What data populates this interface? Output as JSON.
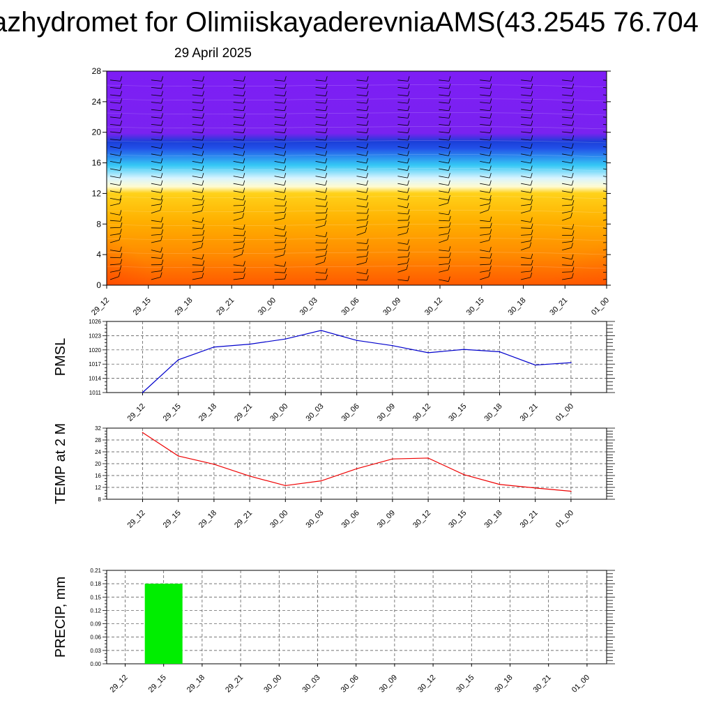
{
  "title": "azhydromet for OlimiiskayaderevniaAMS(43.2545 76.704",
  "date": "29 April 2025",
  "chart_data": [
    {
      "type": "heatmap",
      "name": "vertical-cross-section",
      "x_labels": [
        "29_12",
        "29_15",
        "29_18",
        "29_21",
        "30_00",
        "30_03",
        "30_06",
        "30_09",
        "30_12",
        "30_15",
        "30_18",
        "30_21",
        "01_00"
      ],
      "y_ticks": [
        0,
        4,
        8,
        12,
        16,
        20,
        24,
        28
      ],
      "ylim": [
        0,
        28
      ],
      "colors": {
        "top": "#7d1ef5",
        "deep_blue": "#1a3fd8",
        "cyan": "#35c8f5",
        "light": "#fff8c8",
        "yellow": "#ffd21a",
        "orange": "#ff8a00",
        "red": "#ff2200",
        "dark_red": "#b01010"
      }
    },
    {
      "type": "line",
      "name": "pmsl",
      "ylabel": "PMSL",
      "x_labels": [
        "29_12",
        "29_15",
        "29_18",
        "29_21",
        "30_00",
        "30_03",
        "30_06",
        "30_09",
        "30_12",
        "30_15",
        "30_18",
        "30_21",
        "01_00"
      ],
      "y_ticks": [
        1011,
        1014,
        1017,
        1020,
        1023,
        1026
      ],
      "ylim": [
        1011,
        1026
      ],
      "values": [
        1011.0,
        1017.9,
        1020.6,
        1021.2,
        1022.3,
        1024.1,
        1022.0,
        1020.9,
        1019.4,
        1020.1,
        1019.6,
        1016.8,
        1017.3
      ],
      "color": "#0000cc"
    },
    {
      "type": "line",
      "name": "temp",
      "ylabel": "TEMP at 2 M",
      "x_labels": [
        "29_12",
        "29_15",
        "29_18",
        "29_21",
        "30_00",
        "30_03",
        "30_06",
        "30_09",
        "30_12",
        "30_15",
        "30_18",
        "30_21",
        "01_00"
      ],
      "y_ticks": [
        8,
        12,
        16,
        20,
        24,
        28,
        32
      ],
      "ylim": [
        8,
        32
      ],
      "values": [
        30.5,
        22.6,
        19.8,
        15.8,
        12.6,
        14.2,
        18.3,
        21.6,
        21.9,
        16.3,
        13.0,
        11.8,
        10.7
      ],
      "color": "#ee0000"
    },
    {
      "type": "bar",
      "name": "precip",
      "ylabel": "PRECIP, mm",
      "x_labels": [
        "29_12",
        "29_15",
        "29_18",
        "29_21",
        "30_00",
        "30_03",
        "30_06",
        "30_09",
        "30_12",
        "30_15",
        "30_18",
        "30_21",
        "01_00"
      ],
      "y_ticks": [
        "0.00",
        "0.03",
        "0.06",
        "0.09",
        "0.12",
        "0.15",
        "0.18",
        "0.21"
      ],
      "ylim": [
        0,
        0.21
      ],
      "values": [
        0,
        0.18,
        0,
        0,
        0,
        0,
        0,
        0,
        0,
        0,
        0,
        0,
        0
      ],
      "color": "#00ee00"
    }
  ]
}
